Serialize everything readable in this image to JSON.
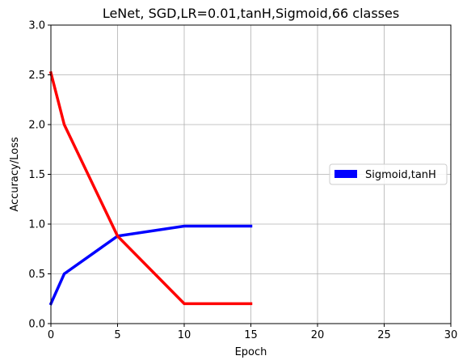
{
  "chart_data": {
    "type": "line",
    "title": "LeNet, SGD,LR=0.01,tanH,Sigmoid,66 classes",
    "xlabel": "Epoch",
    "ylabel": "Accuracy/Loss",
    "xlim": [
      0,
      30
    ],
    "ylim": [
      0,
      3.0
    ],
    "x_ticks": [
      0,
      5,
      10,
      15,
      20,
      25,
      30
    ],
    "y_ticks": [
      "0.0",
      "0.5",
      "1.0",
      "1.5",
      "2.0",
      "2.5",
      "3.0"
    ],
    "grid": true,
    "legend_position": "center-right",
    "series": [
      {
        "name": "Sigmoid,tanH",
        "color": "#0000ff",
        "x": [
          0,
          1,
          5,
          10,
          15
        ],
        "y": [
          0.2,
          0.5,
          0.88,
          0.98,
          0.98
        ]
      },
      {
        "color": "#ff0000",
        "x": [
          0,
          1,
          5,
          10,
          15
        ],
        "y": [
          2.52,
          2.0,
          0.88,
          0.2,
          0.2
        ]
      }
    ]
  }
}
